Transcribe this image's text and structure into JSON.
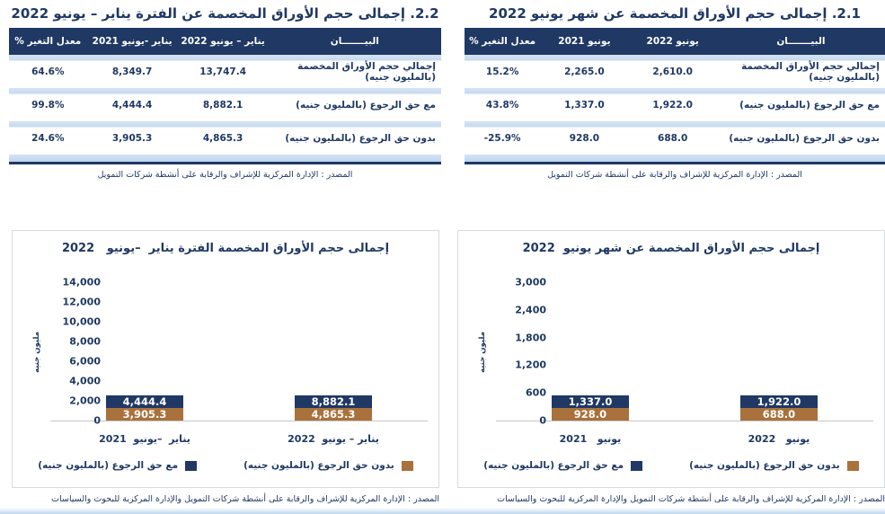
{
  "theme": {
    "navy": "#1F3864",
    "brown": "#A9713B",
    "row_band": "#C7DBEF",
    "panel_border": "#D7DCE1",
    "axis_line": "#C6C6C6"
  },
  "sections": [
    {
      "id": "monthly",
      "title": "2.1. إجمالى حجم الأوراق المخصمة عن شهر يونيو 2022",
      "table": {
        "headers": [
          "البيـــــــان",
          "يونيو  2022",
          "يونيو 2021",
          "معدل التغير %"
        ],
        "rows": [
          {
            "label": "إجمالي حجم الأوراق المخصمة (بالمليون جنيه)",
            "v_current": "2,610.0",
            "v_prev": "2,265.0",
            "change": "15.2%"
          },
          {
            "label": "مع حق الرجوع (بالمليون جنيه)",
            "v_current": "1,922.0",
            "v_prev": "1,337.0",
            "change": "43.8%"
          },
          {
            "label": "بدون حق الرجوع (بالمليون جنيه)",
            "v_current": "688.0",
            "v_prev": "928.0",
            "change": "-25.9%"
          }
        ],
        "source": "المصدر : الإدارة المركزية للإشراف والرقابة على أنشطة شركات التمويل"
      }
    },
    {
      "id": "period",
      "title": "2.2. إجمالى حجم الأوراق المخصمة عن الفترة يناير – يونيو 2022",
      "table": {
        "headers": [
          "البيـــــــان",
          "يناير – يونيو 2022",
          "يناير -يونيو 2021",
          "معدل التغير %"
        ],
        "rows": [
          {
            "label": "إجمالي حجم الأوراق المخصمة (بالمليون جنيه)",
            "v_current": "13,747.4",
            "v_prev": "8,349.7",
            "change": "64.6%"
          },
          {
            "label": "مع حق الرجوع (بالمليون جنيه)",
            "v_current": "8,882.1",
            "v_prev": "4,444.4",
            "change": "99.8%"
          },
          {
            "label": "بدون حق الرجوع (بالمليون جنيه)",
            "v_current": "4,865.3",
            "v_prev": "3,905.3",
            "change": "24.6%"
          }
        ],
        "source": "المصدر : الإدارة المركزية للإشراف والرقابة على أنشطة شركات التمويل"
      }
    }
  ],
  "chart_data": [
    {
      "type": "bar",
      "stacked": true,
      "title": "إجمالى حجم الأوراق المخصمة عن شهر يونيو  2022",
      "ylabel": "مليون جنيه",
      "ymax": 3000,
      "ylim": [
        0,
        3000
      ],
      "grid": false,
      "legend_position": "bottom",
      "yticks": [
        "0",
        "600",
        "1,200",
        "1,800",
        "2,400",
        "3,000"
      ],
      "categories": [
        "يونيو   2021",
        "يونيو   2022"
      ],
      "series": [
        {
          "name": "بدون حق الرجوع (بالمليون جنيه)",
          "color": "#A9713B",
          "values": [
            928.0,
            688.0
          ],
          "labels": [
            "928.0",
            "688.0"
          ]
        },
        {
          "name": "مع حق الرجوع (بالمليون جنيه)",
          "color": "#1F3864",
          "values": [
            1337.0,
            1922.0
          ],
          "labels": [
            "1,337.0",
            "1,922.0"
          ]
        }
      ]
    },
    {
      "type": "bar",
      "stacked": true,
      "title": "إجمالى حجم الأوراق المخصمة الفترة يناير  –يونيو   2022",
      "ylabel": "مليون جنيه",
      "ymax": 14000,
      "ylim": [
        0,
        14000
      ],
      "grid": false,
      "legend_position": "bottom",
      "yticks": [
        "0",
        "2,000",
        "4,000",
        "6,000",
        "8,000",
        "10,000",
        "12,000",
        "14,000"
      ],
      "categories": [
        "يناير  –يونيو  2021",
        "يناير – يونيو  2022"
      ],
      "series": [
        {
          "name": "بدون حق الرجوع (بالمليون جنيه)",
          "color": "#A9713B",
          "values": [
            3905.3,
            4865.3
          ],
          "labels": [
            "3,905.3",
            "4,865.3"
          ]
        },
        {
          "name": "مع حق الرجوع (بالمليون جنيه)",
          "color": "#1F3864",
          "values": [
            4444.4,
            8882.1
          ],
          "labels": [
            "4,444.4",
            "8,882.1"
          ]
        }
      ]
    }
  ],
  "chart_source": "المصدر : الإدارة المركزية للإشراف والرقابة على أنشطة شركات التمويل والإدارة المركزية للبحوث والسياسات"
}
